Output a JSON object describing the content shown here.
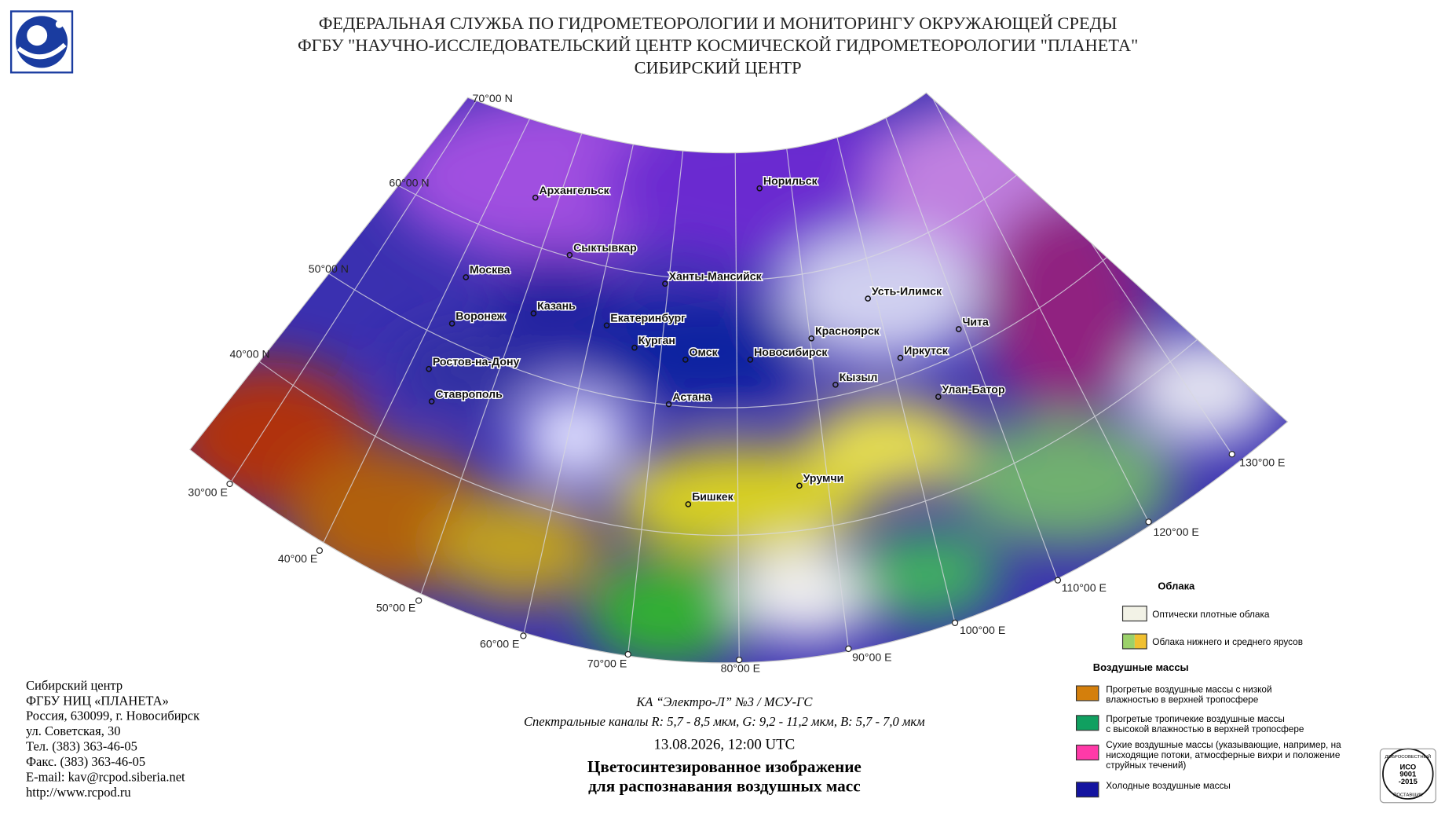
{
  "header": {
    "lines": [
      "ФЕДЕРАЛЬНАЯ СЛУЖБА ПО ГИДРОМЕТЕОРОЛОГИИ И МОНИТОРИНГУ ОКРУЖАЮЩЕЙ СРЕДЫ",
      "ФГБУ \"НАУЧНО-ИССЛЕДОВАТЕЛЬСКИЙ ЦЕНТР КОСМИЧЕСКОЙ ГИДРОМЕТЕОРОЛОГИИ \"ПЛАНЕТА\"",
      "СИБИРСКИЙ ЦЕНТР"
    ]
  },
  "map": {
    "lat_labels": [
      "70°00 N",
      "60°00 N",
      "50°00 N",
      "40°00 N"
    ],
    "lon_labels": [
      "30°00 E",
      "40°00 E",
      "50°00 E",
      "60°00 E",
      "70°00 E",
      "80°00 E",
      "90°00 E",
      "100°00 E",
      "110°00 E",
      "120°00 E",
      "130°00 E"
    ],
    "cities": [
      "Архангельск",
      "Норильск",
      "Сыктывкар",
      "Москва",
      "Ханты-Мансийск",
      "Усть-Илимск",
      "Казань",
      "Воронеж",
      "Екатеринбург",
      "Чита",
      "Красноярск",
      "Курган",
      "Омск",
      "Новосибирск",
      "Иркутск",
      "Ростов-на-Дону",
      "Кызыл",
      "Улан-Батор",
      "Ставрополь",
      "Астана",
      "Урумчи",
      "Бишкек"
    ]
  },
  "legend": {
    "clouds_title": "Облака",
    "clouds": [
      {
        "text": [
          "Оптически плотные облака"
        ],
        "color": "#f2f2e6"
      },
      {
        "text": [
          "Облака нижнего и среднего ярусов"
        ],
        "color": "#9bd16a",
        "color2": "#f0c030"
      }
    ],
    "masses_title": "Воздушные массы",
    "masses": [
      {
        "text": [
          "Прогретые воздушные массы с низкой",
          "влажностью в верхней тропосфере"
        ],
        "color": "#d47f0c"
      },
      {
        "text": [
          "Прогретые тропичекие воздушные массы",
          "с высокой влажностью в верхней тропосфере"
        ],
        "color": "#10a060"
      },
      {
        "text": [
          "Сухие воздушные массы (указывающие, например, на",
          "нисходящие потоки, атмосферные вихри и положение",
          "струйных течений)"
        ],
        "color": "#ff3aa8"
      },
      {
        "text": [
          "Холодные воздушные массы"
        ],
        "color": "#1414a0"
      }
    ]
  },
  "contacts": [
    "Сибирский центр",
    "ФГБУ НИЦ «ПЛАНЕТА»",
    "Россия, 630099, г. Новосибирск",
    "ул. Советская, 30",
    "Тел. (383) 363-46-05",
    "Факс. (383) 363-46-05",
    "E-mail: kav@rcpod.siberia.net",
    "http://www.rcpod.ru"
  ],
  "caption": {
    "satellite": "КА “Электро-Л” №3 / МСУ-ГС",
    "channels": "Спектральные каналы R: 5,7 - 8,5 мкм, G: 9,2 - 11,2 мкм, B: 5,7 - 7,0 мкм",
    "datetime": "13.08.2026, 12:00 UTC",
    "title": [
      "Цветосинтезированное изображение",
      "для распознавания воздушных масс"
    ]
  },
  "badge": {
    "top": "ДОБРОСОВЕСТНЫЙ",
    "lines": [
      "ИСО",
      "9001",
      "-2015"
    ],
    "bottom": "ПОСТАВЩИК"
  }
}
